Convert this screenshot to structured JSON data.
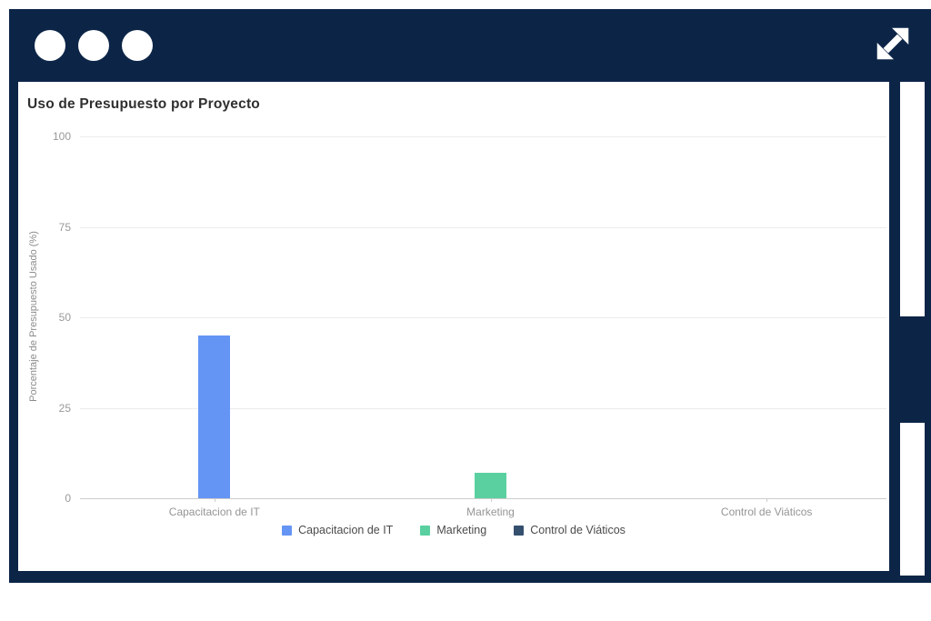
{
  "window": {
    "frame_color": "#0c2547",
    "controls": {
      "dot_icon": "window-dot-icon",
      "dot_count": 3
    },
    "expand_icon": "expand-diagonal-arrow-icon"
  },
  "chart_data": {
    "type": "bar",
    "title": "Uso de Presupuesto por Proyecto",
    "xlabel": "",
    "ylabel": "Porcentaje de Presupuesto Usado (%)",
    "ylim": [
      0,
      100
    ],
    "yticks": [
      0,
      25,
      50,
      75,
      100
    ],
    "grid": true,
    "legend_position": "bottom",
    "categories": [
      "Capacitacion de IT",
      "Marketing",
      "Control de Viáticos"
    ],
    "series": [
      {
        "name": "Capacitacion de IT",
        "color": "#6495f5",
        "values": [
          45,
          null,
          null
        ]
      },
      {
        "name": "Marketing",
        "color": "#5ad0a0",
        "values": [
          null,
          7,
          null
        ]
      },
      {
        "name": "Control de Viáticos",
        "color": "#35506f",
        "values": [
          null,
          null,
          0
        ]
      }
    ],
    "colors": {
      "gridline": "#ececec",
      "axis_line": "#cccccc",
      "tick_text": "#999999",
      "legend_text": "#4a4a4a"
    }
  }
}
